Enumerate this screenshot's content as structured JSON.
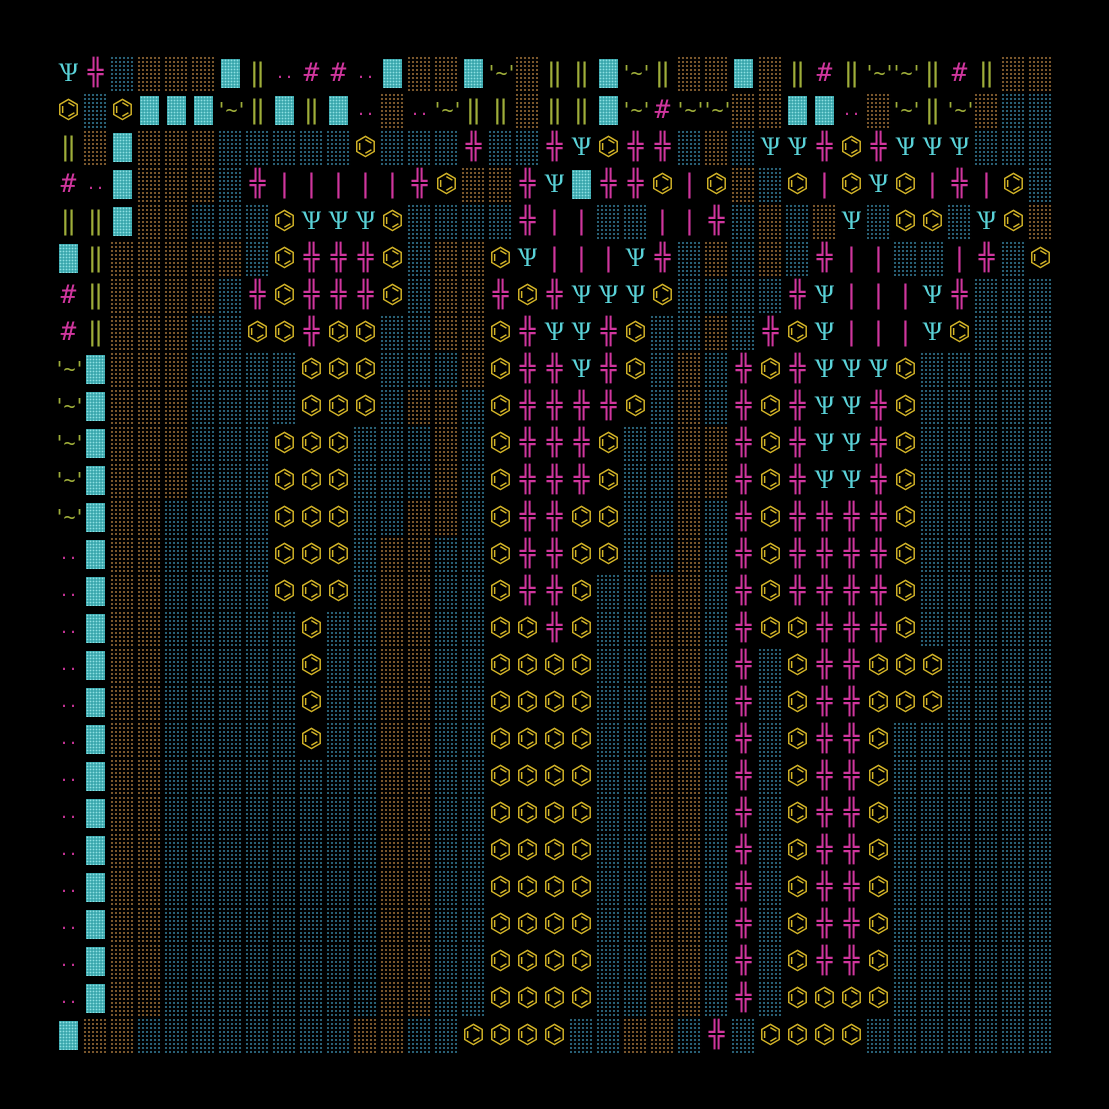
{
  "palette": {
    "background": "#000000",
    "ocean": "#2f6f88",
    "soil": "#8c6432",
    "freshwater": "#3aa7ad",
    "gold": "#d4b528",
    "cyan": "#5ad2d8",
    "magenta": "#d0369e",
    "green": "#9fae3a"
  },
  "legend": {
    ".": "empty",
    "o": "ocean-dither",
    "s": "soil-dither",
    "w": "freshwater-block",
    "H": "hex-tile",
    "Y": "trident-creature",
    "+": "cross-glyph",
    "#": "hash-glyph",
    "I": "double-bar-glyph",
    "L": "single-bar-glyph",
    ":": "two-dots-glyph",
    "~": "tilde-glyph"
  },
  "glyphs": {
    "H": "⌬",
    "Y": "Ѱ",
    "+": "╬",
    "#": "#",
    "I": "‖",
    "L": "|",
    ":": "..",
    "~": "'~'"
  },
  "tile_rows": [
    "Y+ossswI:##:wssw~sIIw~IsswsI#I~~I#Iss",
    "HoHwww~IwIw:s:~IIsIIw~#~~ssww:s~I~s",
    "IswsssoooooHooo+oo+YH++osoYY+H+YYYoo",
    "#:wssso+LLLLL+Hss+Yw++HLHsoHLHYHL+LHoH",
    "IIwssoooHYYYHoooo+LLooLL+ososYoHHoYHs",
    "wIsssssoH+++HossHYLLLY+ososo+LLooL+oH",
    "#Isssso+H+++Hoss+H+YYYHoooo+YLLLY+oo",
    "#IsssooHH+HHoossH+YY+Hooso+HYLLLYHoo",
    "~wsssooooHHHooosH++Y+Hoso+H+YYYHooo",
    "~wsssooooHHHossoH++++Hoso+H+YY+Hooo",
    "~wsssoooHHHooosoH+++Hooss+H+YY+Hooo",
    "~wsssoooHHHooosoH+++Hooss+H+YY+Hooo",
    "~wssooooHHHoossoH++HHooso+H++++Hooo",
    ":wssooooHHHossooH++HHooso+H++++Hooo",
    ":wssooooHHHossooH++Hoosso+H++++Hooo",
    ":wssoooooHoossooHH+Hoosso+HH+++Hooo",
    ":wssoooooHoossooHHHHoosso+oH++HHHoo",
    ":wssoooooHoossooHHHHoosso+oH++HHHoo",
    ":wssoooooHoossooHHHHoosso+oH++Hooo",
    ":wssoooooooossooHHHHoosso+oH++Hooo",
    ":wssoooooooossooHHHHoosso+oH++Hooo",
    ":wssoooooooossooHHHHoosso+oH++Hooo",
    ":wssoooooooossooHHHHoosso+oH++Hooo",
    ":wssoooooooossooHHHHoosso+oH++Hooo",
    ":wssoooooooossooHHHHoosso+oH++Hooo",
    ":wssoooooooossooHHHHoosso+oHHHHooo",
    "wssoooooooossooHHHHoosso+oHHHHooo"
  ]
}
